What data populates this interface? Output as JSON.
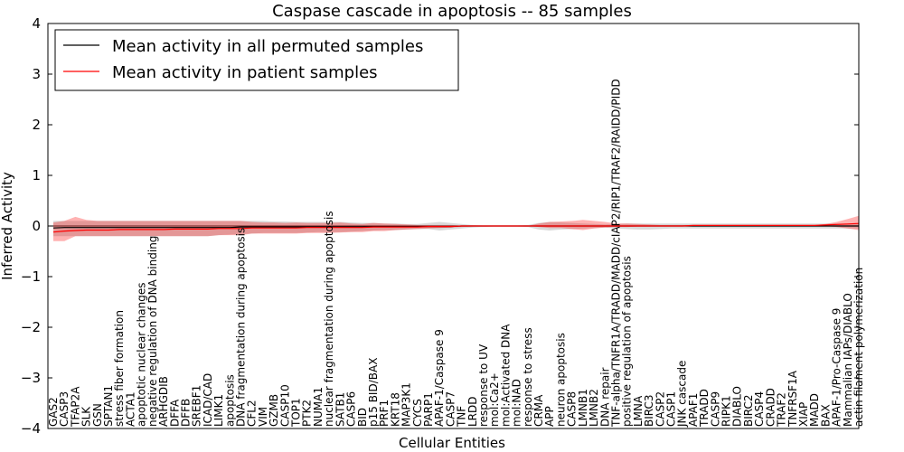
{
  "chart_data": {
    "type": "line",
    "title": "Caspase cascade in apoptosis -- 85 samples",
    "xlabel": "Cellular Entities",
    "ylabel": "Inferred Activity",
    "ylim": [
      -4,
      4
    ],
    "yticks": [
      "4",
      "3",
      "2",
      "1",
      "0",
      "−1",
      "−2",
      "−3",
      "−4"
    ],
    "ytick_values": [
      4,
      3,
      2,
      1,
      0,
      -1,
      -2,
      -3,
      -4
    ],
    "legend": {
      "position": "top-left",
      "entries": [
        {
          "label": "Mean activity in all permuted samples",
          "color": "#000000"
        },
        {
          "label": "Mean activity in patient samples",
          "color": "#ff0000"
        }
      ]
    },
    "categories": [
      "GAS2",
      "CASP3",
      "TFAP2A",
      "SLK",
      "GSN",
      "SPTAN1",
      "stress fiber formation",
      "ACTA1",
      "apoptotic nuclear changes",
      "negative regulation of DNA binding",
      "ARHGDIB",
      "DFFA",
      "DFFB",
      "SREBF1",
      "ICAD/CAD",
      "LIMK1",
      "apoptosis",
      "DNA fragmentation during apoptosis",
      "CFL2",
      "VIM",
      "GZMB",
      "CASP10",
      "TOP1",
      "PTK2",
      "NUMA1",
      "nuclear fragmentation during apoptosis",
      "SATB1",
      "CASP6",
      "BID",
      "p15 BID/BAX",
      "PRF1",
      "KRT18",
      "MAP3K1",
      "CYCS",
      "PARP1",
      "APAF-1/Caspase 9",
      "CASP7",
      "TNF",
      "LRDD",
      "response to UV",
      "mol:Ca2+",
      "mol:Activated DNA",
      "mol:NAD",
      "response to stress",
      "CRMA",
      "APP",
      "neuron apoptosis",
      "CASP8",
      "LMNB1",
      "LMNB2",
      "DNA repair",
      "TNF-alpha/TNFR1A/TRADD/MADD/cIAP2/RIP1/TRAF2/RAIDD/PIDD",
      "positive regulation of apoptosis",
      "LMNA",
      "BIRC3",
      "CASP2",
      "CASP1",
      "JNK cascade",
      "APAF1",
      "TRADD",
      "CASP9",
      "RIPK1",
      "DIABLO",
      "BIRC2",
      "CASP4",
      "CRADD",
      "TRAF2",
      "TNFRSF1A",
      "XIAP",
      "MADD",
      "BAX",
      "APAF-1/Pro-Caspase 9",
      "Mammalian IAPs/DIABLO",
      "actin filament polymerization"
    ],
    "series": [
      {
        "name": "Mean activity in patient samples",
        "color": "#ff0000",
        "values": [
          -0.12,
          -0.1,
          -0.09,
          -0.08,
          -0.08,
          -0.08,
          -0.07,
          -0.07,
          -0.07,
          -0.07,
          -0.07,
          -0.06,
          -0.06,
          -0.06,
          -0.06,
          -0.05,
          -0.05,
          -0.05,
          -0.04,
          -0.04,
          -0.04,
          -0.04,
          -0.04,
          -0.03,
          -0.03,
          -0.03,
          -0.03,
          -0.03,
          -0.03,
          -0.02,
          -0.02,
          -0.02,
          -0.02,
          -0.02,
          -0.01,
          -0.01,
          -0.01,
          0.0,
          0.0,
          0.0,
          0.0,
          0.0,
          0.0,
          0.0,
          0.0,
          0.0,
          0.0,
          0.0,
          0.0,
          0.0,
          0.0,
          0.0,
          0.0,
          0.0,
          0.0,
          0.0,
          0.0,
          0.0,
          0.01,
          0.01,
          0.01,
          0.01,
          0.01,
          0.01,
          0.01,
          0.01,
          0.01,
          0.01,
          0.01,
          0.01,
          0.02,
          0.03,
          0.04,
          0.05
        ],
        "lower": [
          -0.3,
          -0.3,
          -0.2,
          -0.2,
          -0.2,
          -0.2,
          -0.2,
          -0.2,
          -0.2,
          -0.2,
          -0.2,
          -0.2,
          -0.2,
          -0.2,
          -0.2,
          -0.18,
          -0.18,
          -0.18,
          -0.15,
          -0.15,
          -0.15,
          -0.15,
          -0.15,
          -0.14,
          -0.14,
          -0.14,
          -0.13,
          -0.12,
          -0.12,
          -0.1,
          -0.1,
          -0.08,
          -0.07,
          -0.06,
          -0.05,
          -0.04,
          -0.03,
          -0.02,
          -0.01,
          0.0,
          0.0,
          0.0,
          0.0,
          0.0,
          -0.02,
          -0.04,
          -0.04,
          -0.06,
          -0.08,
          -0.05,
          -0.03,
          -0.02,
          -0.02,
          -0.01,
          -0.01,
          0.0,
          0.0,
          0.0,
          0.0,
          0.0,
          0.0,
          0.0,
          0.0,
          0.0,
          0.0,
          0.0,
          0.0,
          0.0,
          0.0,
          0.0,
          0.0,
          -0.02,
          -0.05,
          -0.08
        ],
        "upper": [
          0.07,
          0.1,
          0.18,
          0.12,
          0.1,
          0.1,
          0.1,
          0.1,
          0.1,
          0.1,
          0.1,
          0.1,
          0.1,
          0.1,
          0.1,
          0.1,
          0.1,
          0.1,
          0.08,
          0.07,
          0.07,
          0.06,
          0.07,
          0.06,
          0.06,
          0.06,
          0.07,
          0.05,
          0.04,
          0.06,
          0.05,
          0.04,
          0.03,
          0.02,
          0.02,
          0.02,
          0.02,
          0.01,
          0.01,
          0.0,
          0.0,
          0.0,
          0.0,
          0.0,
          0.05,
          0.08,
          0.09,
          0.1,
          0.12,
          0.1,
          0.08,
          0.05,
          0.05,
          0.04,
          0.03,
          0.02,
          0.02,
          0.02,
          0.02,
          0.02,
          0.02,
          0.02,
          0.02,
          0.02,
          0.02,
          0.02,
          0.02,
          0.02,
          0.02,
          0.02,
          0.04,
          0.08,
          0.14,
          0.2
        ]
      },
      {
        "name": "Mean activity in all permuted samples",
        "color": "#000000",
        "values": [
          -0.04,
          -0.03,
          -0.03,
          -0.03,
          -0.03,
          -0.03,
          -0.03,
          -0.03,
          -0.03,
          -0.03,
          -0.03,
          -0.03,
          -0.03,
          -0.03,
          -0.03,
          -0.03,
          -0.03,
          -0.02,
          -0.02,
          -0.02,
          -0.02,
          -0.02,
          -0.02,
          -0.02,
          -0.02,
          -0.02,
          -0.02,
          -0.02,
          -0.02,
          -0.01,
          -0.01,
          -0.01,
          -0.01,
          -0.01,
          -0.01,
          -0.01,
          -0.01,
          0.0,
          0.0,
          0.0,
          0.0,
          0.0,
          0.0,
          0.0,
          0.0,
          0.0,
          0.0,
          0.0,
          0.0,
          0.0,
          0.0,
          0.0,
          0.0,
          0.0,
          0.0,
          0.0,
          0.0,
          0.0,
          0.0,
          0.0,
          0.0,
          0.0,
          0.0,
          0.0,
          0.0,
          0.0,
          0.0,
          0.0,
          0.0,
          0.0,
          0.0,
          0.0,
          0.0,
          0.0
        ],
        "lower": [
          -0.2,
          -0.2,
          -0.2,
          -0.2,
          -0.2,
          -0.2,
          -0.2,
          -0.2,
          -0.2,
          -0.2,
          -0.2,
          -0.2,
          -0.2,
          -0.2,
          -0.2,
          -0.18,
          -0.17,
          -0.16,
          -0.15,
          -0.14,
          -0.14,
          -0.14,
          -0.14,
          -0.13,
          -0.12,
          -0.12,
          -0.12,
          -0.11,
          -0.1,
          -0.09,
          -0.08,
          -0.08,
          -0.07,
          -0.06,
          -0.06,
          -0.09,
          -0.07,
          -0.05,
          -0.03,
          -0.02,
          -0.01,
          -0.01,
          -0.01,
          -0.02,
          -0.07,
          -0.09,
          -0.07,
          -0.06,
          -0.05,
          -0.04,
          -0.03,
          -0.05,
          -0.06,
          -0.07,
          -0.07,
          -0.06,
          -0.05,
          -0.05,
          -0.05,
          -0.05,
          -0.05,
          -0.05,
          -0.05,
          -0.05,
          -0.05,
          -0.05,
          -0.05,
          -0.05,
          -0.05,
          -0.05,
          -0.05,
          -0.05,
          -0.05,
          -0.05
        ],
        "upper": [
          0.1,
          0.1,
          0.1,
          0.1,
          0.1,
          0.1,
          0.1,
          0.1,
          0.1,
          0.1,
          0.1,
          0.1,
          0.1,
          0.1,
          0.1,
          0.1,
          0.1,
          0.1,
          0.1,
          0.1,
          0.09,
          0.09,
          0.08,
          0.08,
          0.08,
          0.08,
          0.08,
          0.07,
          0.06,
          0.06,
          0.05,
          0.05,
          0.04,
          0.04,
          0.06,
          0.08,
          0.06,
          0.04,
          0.02,
          0.01,
          0.01,
          0.01,
          0.01,
          0.02,
          0.06,
          0.08,
          0.07,
          0.06,
          0.05,
          0.04,
          0.03,
          0.04,
          0.05,
          0.05,
          0.05,
          0.05,
          0.05,
          0.05,
          0.05,
          0.05,
          0.05,
          0.05,
          0.05,
          0.05,
          0.05,
          0.05,
          0.05,
          0.05,
          0.05,
          0.05,
          0.05,
          0.05,
          0.05,
          0.05
        ]
      }
    ]
  }
}
